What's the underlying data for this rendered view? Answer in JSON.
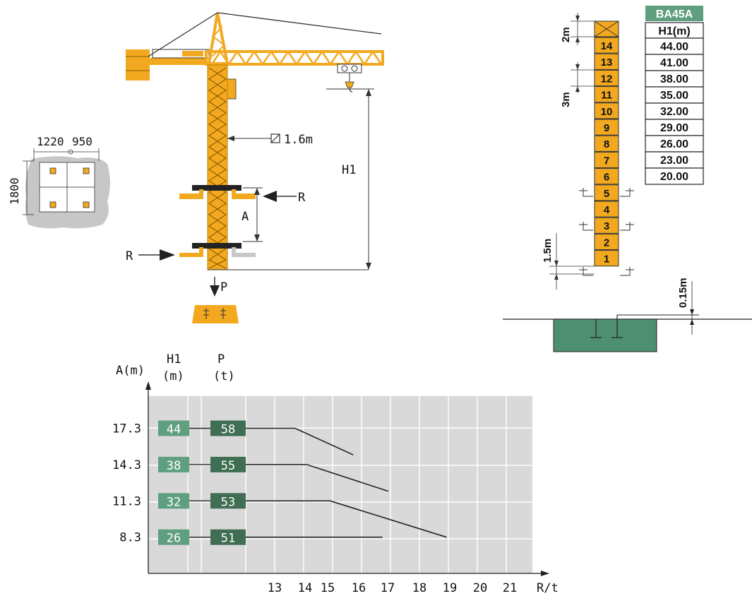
{
  "colors": {
    "crane_yellow": "#f2a91f",
    "dark_green": "#3f6e52",
    "light_green": "#5f9f80",
    "grid_bg": "#d9d9d9",
    "grid_line": "#ffffff",
    "foundation_gray": "#c7c7c7",
    "base_green": "#4f8f71"
  },
  "foundation_plan": {
    "dim_left": "1220",
    "dim_right": "950",
    "dim_height": "1800"
  },
  "crane": {
    "section_size": "1.6m",
    "height_label": "H1",
    "force_label_r1": "R",
    "force_label_r2": "R",
    "spacing_label": "A",
    "load_label": "P"
  },
  "mast_table": {
    "title": "BA45A",
    "header": "H1(m)",
    "rows": [
      "44.00",
      "41.00",
      "38.00",
      "35.00",
      "32.00",
      "29.00",
      "26.00",
      "23.00",
      "20.00"
    ]
  },
  "mast": {
    "sections": [
      "14",
      "13",
      "12",
      "11",
      "10",
      "9",
      "8",
      "7",
      "6",
      "5",
      "4",
      "3",
      "2",
      "1"
    ],
    "dim_top": "2m",
    "dim_section": "3m",
    "dim_bottom": "1.5m",
    "dim_base": "0.15m"
  },
  "chart_data": {
    "type": "line",
    "header_a": "A(m)",
    "header_h1": [
      "H1",
      "(m)"
    ],
    "header_p": [
      "P",
      "(t)"
    ],
    "x_axis_label": "R/t",
    "x_ticks": [
      "13",
      "14",
      "15",
      "16",
      "17",
      "18",
      "19",
      "20",
      "21"
    ],
    "grid": true,
    "series": [
      {
        "a": "17.3",
        "h1": "44",
        "p": "58",
        "points": [
          [
            12.3,
            17.3
          ],
          [
            14.0,
            17.3
          ],
          [
            16.0,
            15.1
          ]
        ]
      },
      {
        "a": "14.3",
        "h1": "38",
        "p": "55",
        "points": [
          [
            12.3,
            14.3
          ],
          [
            14.4,
            14.3
          ],
          [
            17.2,
            12.1
          ]
        ]
      },
      {
        "a": "11.3",
        "h1": "32",
        "p": "53",
        "points": [
          [
            12.3,
            11.3
          ],
          [
            15.2,
            11.3
          ],
          [
            19.2,
            8.3
          ]
        ]
      },
      {
        "a": "8.3",
        "h1": "26",
        "p": "51",
        "points": [
          [
            12.3,
            8.3
          ],
          [
            17.0,
            8.3
          ]
        ]
      }
    ]
  }
}
